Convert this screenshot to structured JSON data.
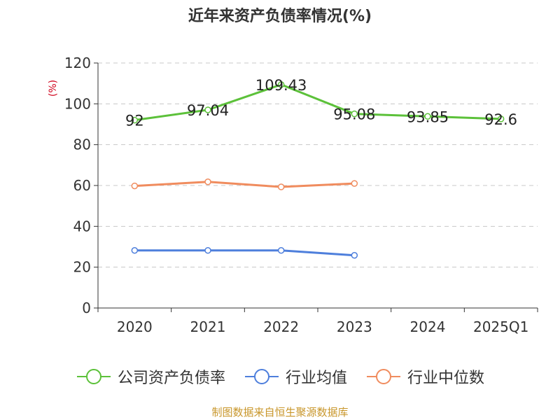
{
  "title": "近年来资产负债率情况(%)",
  "source": "制图数据来自恒生聚源数据库",
  "chart_data": {
    "type": "line",
    "title": "近年来资产负债率情况(%)",
    "ylabel": "(%)",
    "ylim": [
      0,
      120
    ],
    "yticks": [
      0,
      20,
      40,
      60,
      80,
      100,
      120
    ],
    "grid": true,
    "legend_position": "bottom",
    "categories": [
      "2020",
      "2021",
      "2022",
      "2023",
      "2024",
      "2025Q1"
    ],
    "series": [
      {
        "name": "公司资产负债率",
        "color": "#5cc13a",
        "values": [
          92,
          97.04,
          109.43,
          95.08,
          93.85,
          92.6
        ],
        "labels": [
          "92",
          "97.04",
          "109.43",
          "95.08",
          "93.85",
          "92.6"
        ]
      },
      {
        "name": "行业均值",
        "color": "#4e7fdc",
        "values": [
          28.2,
          28.2,
          28.2,
          25.8,
          null,
          null
        ]
      },
      {
        "name": "行业中位数",
        "color": "#f08c5e",
        "values": [
          59.8,
          61.8,
          59.3,
          61.0,
          null,
          null
        ]
      }
    ]
  }
}
